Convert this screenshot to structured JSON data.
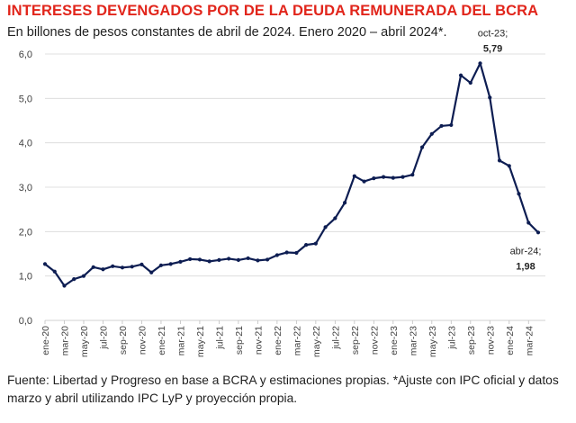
{
  "header": {
    "title": "INTERESES DEVENGADOS POR DE LA DEUDA REMUNERADA DEL BCRA",
    "subtitle": "En billones de pesos constantes de abril de 2024. Enero 2020 – abril 2024*."
  },
  "footer": {
    "source": "Fuente: Libertad y Progreso en base a BCRA y estimaciones propias. *Ajuste con IPC oficial y datos marzo y abril utilizando IPC LyP y proyección propia."
  },
  "colors": {
    "line": "#0d1d52",
    "grid": "#d9d9d9",
    "title": "#e1251b"
  },
  "chart_data": {
    "type": "line",
    "title": "INTERESES DEVENGADOS POR DE LA DEUDA REMUNERADA DEL BCRA",
    "xlabel": "",
    "ylabel": "",
    "ylim": [
      0,
      6
    ],
    "yticks": [
      0,
      1,
      2,
      3,
      4,
      5,
      6
    ],
    "ytick_labels": [
      "0,0",
      "1,0",
      "2,0",
      "3,0",
      "4,0",
      "5,0",
      "6,0"
    ],
    "grid": "horizontal",
    "xtick_labels": [
      "ene-20",
      "mar-20",
      "may-20",
      "jul-20",
      "sep-20",
      "nov-20",
      "ene-21",
      "mar-21",
      "may-21",
      "jul-21",
      "sep-21",
      "nov-21",
      "ene-22",
      "mar-22",
      "may-22",
      "jul-22",
      "sep-22",
      "nov-22",
      "ene-23",
      "mar-23",
      "may-23",
      "jul-23",
      "sep-23",
      "nov-23",
      "ene-24",
      "mar-24"
    ],
    "series": [
      {
        "name": "Intereses devengados",
        "x": [
          "ene-20",
          "feb-20",
          "mar-20",
          "abr-20",
          "may-20",
          "jun-20",
          "jul-20",
          "ago-20",
          "sep-20",
          "oct-20",
          "nov-20",
          "dic-20",
          "ene-21",
          "feb-21",
          "mar-21",
          "abr-21",
          "may-21",
          "jun-21",
          "jul-21",
          "ago-21",
          "sep-21",
          "oct-21",
          "nov-21",
          "dic-21",
          "ene-22",
          "feb-22",
          "mar-22",
          "abr-22",
          "may-22",
          "jun-22",
          "jul-22",
          "ago-22",
          "sep-22",
          "oct-22",
          "nov-22",
          "dic-22",
          "ene-23",
          "feb-23",
          "mar-23",
          "abr-23",
          "may-23",
          "jun-23",
          "jul-23",
          "ago-23",
          "sep-23",
          "oct-23",
          "nov-23",
          "dic-23",
          "ene-24",
          "feb-24",
          "mar-24",
          "abr-24"
        ],
        "values": [
          1.27,
          1.1,
          0.78,
          0.93,
          1.0,
          1.2,
          1.15,
          1.22,
          1.19,
          1.21,
          1.26,
          1.08,
          1.24,
          1.27,
          1.32,
          1.38,
          1.37,
          1.33,
          1.36,
          1.39,
          1.36,
          1.4,
          1.35,
          1.37,
          1.47,
          1.53,
          1.52,
          1.7,
          1.73,
          2.1,
          2.3,
          2.65,
          3.25,
          3.13,
          3.2,
          3.23,
          3.21,
          3.23,
          3.28,
          3.9,
          4.2,
          4.38,
          4.4,
          5.52,
          5.35,
          5.79,
          5.02,
          3.6,
          3.48,
          2.85,
          2.2,
          1.98
        ]
      }
    ],
    "annotations": [
      {
        "x": "oct-23",
        "label": "oct-23;",
        "value_label": "5,79"
      },
      {
        "x": "abr-24",
        "label": "abr-24;",
        "value_label": "1,98"
      }
    ]
  }
}
